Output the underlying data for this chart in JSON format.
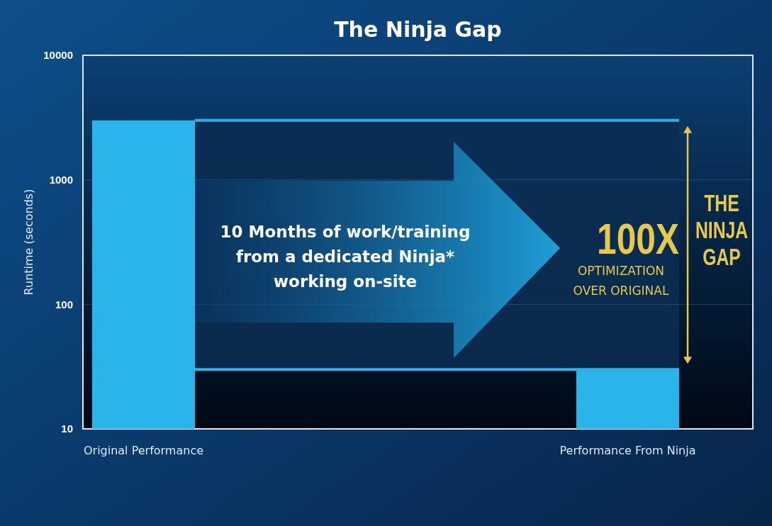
{
  "chart_data": {
    "type": "bar",
    "title": "The Ninja Gap",
    "ylabel": "Runtime (seconds)",
    "categories": [
      "Original Performance",
      "Performance From Ninja"
    ],
    "values": [
      3000,
      30
    ],
    "color": "#29b5ea",
    "log": true,
    "ylim": [
      10,
      10000
    ],
    "yticks": [
      10,
      100,
      1000,
      10000
    ],
    "grid": "y",
    "ref_lines": [
      {
        "axis": "y",
        "value": 3000,
        "color": "#29b5ea"
      },
      {
        "axis": "y",
        "value": 30,
        "color": "#29b5ea"
      }
    ],
    "bands": [
      {
        "axis": "y",
        "from": 30,
        "to": 3000,
        "color": "#0b2d52"
      }
    ],
    "annotations": [
      "10 Months of work/training\nfrom a dedicated Ninja*\nworking on-site",
      "100X",
      "OPTIMIZATION\nOVER ORIGINAL",
      "THE\nNINJA\nGAP"
    ]
  }
}
